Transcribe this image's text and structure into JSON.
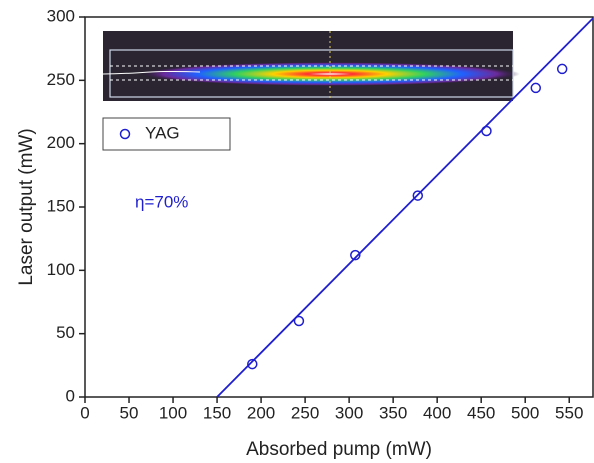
{
  "chart_data": {
    "type": "scatter",
    "x_label": "Absorbed pump (mW)",
    "y_label": "Laser output (mW)",
    "annotation": "η=70%",
    "series": [
      {
        "name": "YAG",
        "color": "#1f1fd0",
        "x": [
          190,
          243,
          307,
          378,
          456,
          512,
          542
        ],
        "values": [
          26,
          60,
          112,
          159,
          210,
          244,
          259
        ]
      }
    ],
    "fit": {
      "x": [
        150,
        577
      ],
      "y": [
        0,
        299
      ]
    },
    "xlim": [
      0,
      577
    ],
    "ylim": [
      0,
      300
    ],
    "xticks": [
      0,
      50,
      100,
      150,
      200,
      250,
      300,
      350,
      400,
      450,
      500,
      550
    ],
    "yticks": [
      0,
      50,
      100,
      150,
      200,
      250,
      300
    ],
    "legend": "upper-left"
  }
}
